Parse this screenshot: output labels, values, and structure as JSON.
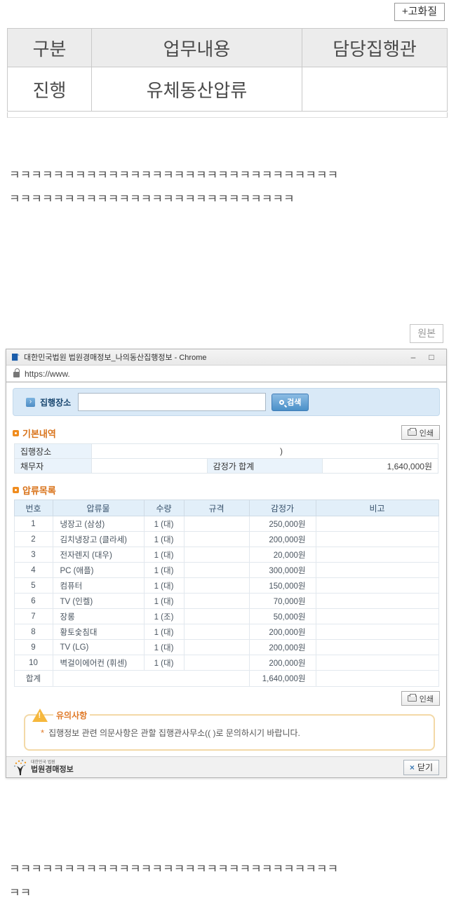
{
  "colors": {
    "accent_blue": "#4a90c8",
    "panel_blue": "#d9e9f7",
    "table_header_blue": "#e2eff9",
    "heading_orange": "#d9731a",
    "warning_border": "#f3d9a7",
    "warning_triangle": "#f6b83d"
  },
  "post": {
    "hq_button": "+고화질",
    "wonbon_button": "원본",
    "kek_block1_line1": "ㅋㅋㅋㅋㅋㅋㅋㅋㅋㅋㅋㅋㅋㅋㅋㅋㅋㅋㅋㅋㅋㅋㅋㅋㅋㅋㅋㅋㅋㅋ",
    "kek_block1_line2": "ㅋㅋㅋㅋㅋㅋㅋㅋㅋㅋㅋㅋㅋㅋㅋㅋㅋㅋㅋㅋㅋㅋㅋㅋㅋㅋ",
    "kek_block2_line1": "ㅋㅋㅋㅋㅋㅋㅋㅋㅋㅋㅋㅋㅋㅋㅋㅋㅋㅋㅋㅋㅋㅋㅋㅋㅋㅋㅋㅋㅋㅋ",
    "kek_block2_line2": "ㅋㅋ"
  },
  "status_table": {
    "headers": [
      "구분",
      "업무내용",
      "담당집행관"
    ],
    "rows": [
      [
        "진행",
        "유체동산압류",
        ""
      ]
    ]
  },
  "chrome": {
    "title": "대한민국법원 법원경매정보_나의동산집행정보 - Chrome",
    "minimize_glyph": "–",
    "maximize_glyph": "□",
    "url": "https://www.",
    "search": {
      "arrow_glyph": "›",
      "label": "집행장소",
      "input_value": "",
      "button": "검색"
    },
    "basic_section": {
      "title": "기본내역",
      "print_button": "인쇄",
      "execution_place_label": "집행장소",
      "execution_place_value": ")",
      "debtor_label": "채무자",
      "debtor_value": "",
      "appraisal_total_label": "감정가 합계",
      "appraisal_total_value": "1,640,000원"
    },
    "seizure_section": {
      "title": "압류목록",
      "headers": [
        "번호",
        "압류물",
        "수량",
        "규격",
        "감정가",
        "비고"
      ],
      "rows": [
        [
          "1",
          "냉장고 (삼성)",
          "1 (대)",
          "",
          "250,000원",
          ""
        ],
        [
          "2",
          "김치냉장고 (클라세)",
          "1 (대)",
          "",
          "200,000원",
          ""
        ],
        [
          "3",
          "전자렌지 (대우)",
          "1 (대)",
          "",
          "20,000원",
          ""
        ],
        [
          "4",
          "PC (애플)",
          "1 (대)",
          "",
          "300,000원",
          ""
        ],
        [
          "5",
          "컴퓨터",
          "1 (대)",
          "",
          "150,000원",
          ""
        ],
        [
          "6",
          "TV (인켈)",
          "1 (대)",
          "",
          "70,000원",
          ""
        ],
        [
          "7",
          "장롱",
          "1 (조)",
          "",
          "50,000원",
          ""
        ],
        [
          "8",
          "황토숯침대",
          "1 (대)",
          "",
          "200,000원",
          ""
        ],
        [
          "9",
          "TV (LG)",
          "1 (대)",
          "",
          "200,000원",
          ""
        ],
        [
          "10",
          "벽걸이에어컨 (휘센)",
          "1 (대)",
          "",
          "200,000원",
          ""
        ]
      ],
      "total_label": "합계",
      "total_value": "1,640,000원",
      "print_button": "인쇄"
    },
    "notice": {
      "title": "유의사항",
      "star": "*",
      "text": "집행정보 관련 의문사항은 관할 집행관사무소((                    )로 문의하시기 바랍니다."
    },
    "footer": {
      "logo_top": "대한민국 법원",
      "logo_main": "법원경매정보",
      "close_x": "×",
      "close_button": "닫기"
    }
  }
}
